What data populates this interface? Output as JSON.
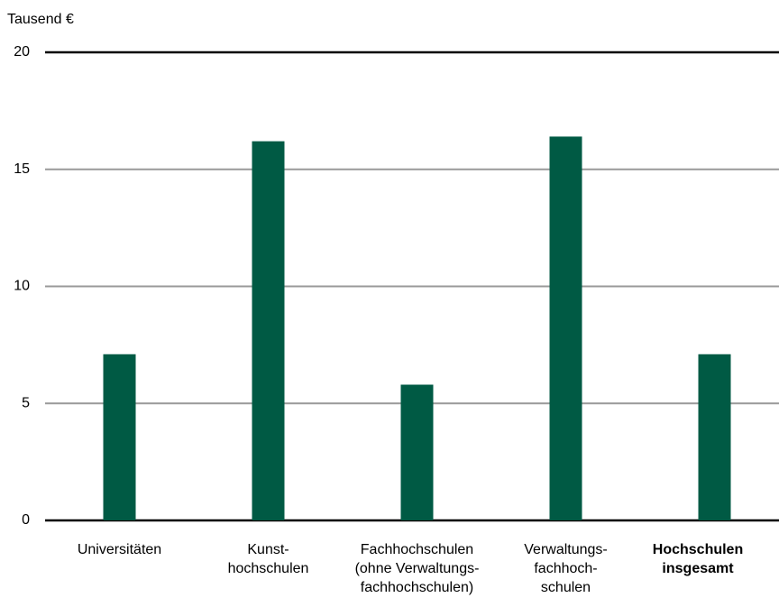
{
  "chart_data": {
    "type": "bar",
    "y_label": "Tausend €",
    "categories": [
      "Universitäten",
      "Kunst-\nhochschulen",
      "Fachhochschulen\n(ohne Verwaltungs-\nfachhochschulen)",
      "Verwaltungs-\nfachhoch-\nschulen",
      "Hochschulen\ninsgesamt"
    ],
    "values": [
      7.1,
      16.2,
      5.8,
      16.4,
      7.1
    ],
    "color": "#005a44",
    "ylim": [
      0,
      20
    ],
    "yticks": [
      0,
      5,
      10,
      15,
      20
    ],
    "grid": true
  }
}
